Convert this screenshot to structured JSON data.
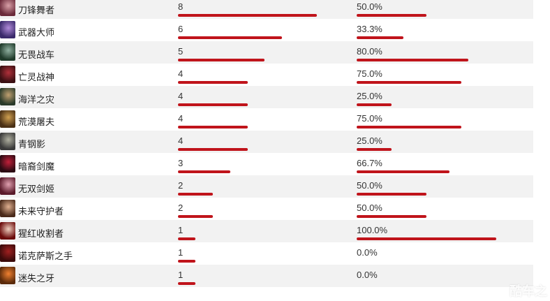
{
  "table": {
    "rows": [
      {
        "name": "刀锋舞者",
        "count": "8",
        "count_value": 8,
        "rate": "50.0%",
        "rate_value": 50.0,
        "avatar_colors": [
          "#6b2a3a",
          "#d9a0a8"
        ]
      },
      {
        "name": "武器大师",
        "count": "6",
        "count_value": 6,
        "rate": "33.3%",
        "rate_value": 33.3,
        "avatar_colors": [
          "#3a2a6b",
          "#b08ad9"
        ]
      },
      {
        "name": "无畏战车",
        "count": "5",
        "count_value": 5,
        "rate": "80.0%",
        "rate_value": 80.0,
        "avatar_colors": [
          "#1f3a2a",
          "#8fb0a0"
        ]
      },
      {
        "name": "亡灵战神",
        "count": "4",
        "count_value": 4,
        "rate": "75.0%",
        "rate_value": 75.0,
        "avatar_colors": [
          "#3a0f12",
          "#b0303a"
        ]
      },
      {
        "name": "海洋之灾",
        "count": "4",
        "count_value": 4,
        "rate": "25.0%",
        "rate_value": 25.0,
        "avatar_colors": [
          "#2a3a2a",
          "#c0a070"
        ]
      },
      {
        "name": "荒漠屠夫",
        "count": "4",
        "count_value": 4,
        "rate": "75.0%",
        "rate_value": 75.0,
        "avatar_colors": [
          "#4a3015",
          "#d0a050"
        ]
      },
      {
        "name": "青钢影",
        "count": "4",
        "count_value": 4,
        "rate": "25.0%",
        "rate_value": 25.0,
        "avatar_colors": [
          "#3a3a3a",
          "#b0b0a0"
        ]
      },
      {
        "name": "暗裔剑魔",
        "count": "3",
        "count_value": 3,
        "rate": "66.7%",
        "rate_value": 66.7,
        "avatar_colors": [
          "#2a0a12",
          "#c0203a"
        ]
      },
      {
        "name": "无双剑姬",
        "count": "2",
        "count_value": 2,
        "rate": "50.0%",
        "rate_value": 50.0,
        "avatar_colors": [
          "#5a1a2a",
          "#e0a0b0"
        ]
      },
      {
        "name": "未来守护者",
        "count": "2",
        "count_value": 2,
        "rate": "50.0%",
        "rate_value": 50.0,
        "avatar_colors": [
          "#4a2a1a",
          "#e0b090"
        ]
      },
      {
        "name": "猩红收割者",
        "count": "1",
        "count_value": 1,
        "rate": "100.0%",
        "rate_value": 100.0,
        "avatar_colors": [
          "#6a0a0a",
          "#f0d0c0"
        ]
      },
      {
        "name": "诺克萨斯之手",
        "count": "1",
        "count_value": 1,
        "rate": "0.0%",
        "rate_value": 0.0,
        "avatar_colors": [
          "#3a0a0a",
          "#a02020"
        ]
      },
      {
        "name": "迷失之牙",
        "count": "1",
        "count_value": 1,
        "rate": "0.0%",
        "rate_value": 0.0,
        "avatar_colors": [
          "#5a2a0a",
          "#f08030"
        ]
      }
    ]
  },
  "accent_color": "#c0141b",
  "watermark": "酷车之"
}
